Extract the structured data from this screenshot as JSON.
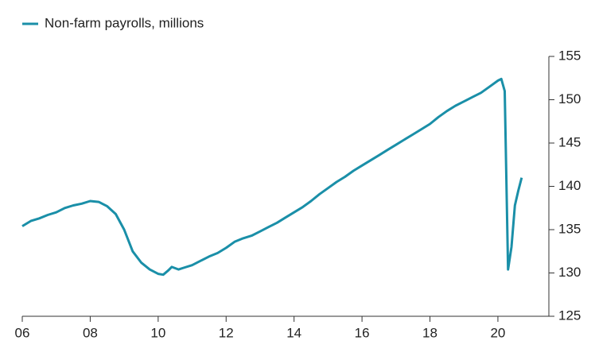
{
  "chart_data": {
    "type": "line",
    "x": [
      6,
      6.25,
      6.5,
      6.75,
      7,
      7.25,
      7.5,
      7.75,
      8,
      8.25,
      8.5,
      8.75,
      9,
      9.25,
      9.5,
      9.75,
      10,
      10.15,
      10.3,
      10.4,
      10.6,
      10.75,
      11,
      11.25,
      11.5,
      11.75,
      12,
      12.25,
      12.5,
      12.75,
      13,
      13.25,
      13.5,
      13.75,
      14,
      14.25,
      14.5,
      14.75,
      15,
      15.25,
      15.5,
      15.75,
      16,
      16.25,
      16.5,
      16.75,
      17,
      17.25,
      17.5,
      17.75,
      18,
      18.25,
      18.5,
      18.75,
      19,
      19.25,
      19.5,
      19.75,
      20,
      20.1,
      20.2,
      20.3,
      20.4,
      20.5,
      20.6,
      20.7
    ],
    "series": [
      {
        "name": "Non-farm payrolls, millions",
        "color": "#1a8fa8",
        "values": [
          135.4,
          136.0,
          136.3,
          136.7,
          137.0,
          137.5,
          137.8,
          138.0,
          138.3,
          138.2,
          137.7,
          136.8,
          135.0,
          132.5,
          131.2,
          130.4,
          129.9,
          129.8,
          130.3,
          130.7,
          130.4,
          130.6,
          130.9,
          131.4,
          131.9,
          132.3,
          132.9,
          133.6,
          134.0,
          134.3,
          134.8,
          135.3,
          135.8,
          136.4,
          137.0,
          137.6,
          138.3,
          139.1,
          139.8,
          140.5,
          141.1,
          141.8,
          142.4,
          143.0,
          143.6,
          144.2,
          144.8,
          145.4,
          146.0,
          146.6,
          147.2,
          148.0,
          148.7,
          149.3,
          149.8,
          150.3,
          150.8,
          151.5,
          152.2,
          152.4,
          151.0,
          130.4,
          133.0,
          137.8,
          139.5,
          141.0
        ]
      }
    ],
    "xlim": [
      6,
      21.5
    ],
    "xticks": [
      {
        "value": 6,
        "label": "06"
      },
      {
        "value": 8,
        "label": "08"
      },
      {
        "value": 10,
        "label": "10"
      },
      {
        "value": 12,
        "label": "12"
      },
      {
        "value": 14,
        "label": "14"
      },
      {
        "value": 16,
        "label": "16"
      },
      {
        "value": 18,
        "label": "18"
      },
      {
        "value": 20,
        "label": "20"
      }
    ],
    "ylim": [
      125,
      155
    ],
    "yticks": [
      125,
      130,
      135,
      140,
      145,
      150,
      155
    ],
    "grid": false
  }
}
